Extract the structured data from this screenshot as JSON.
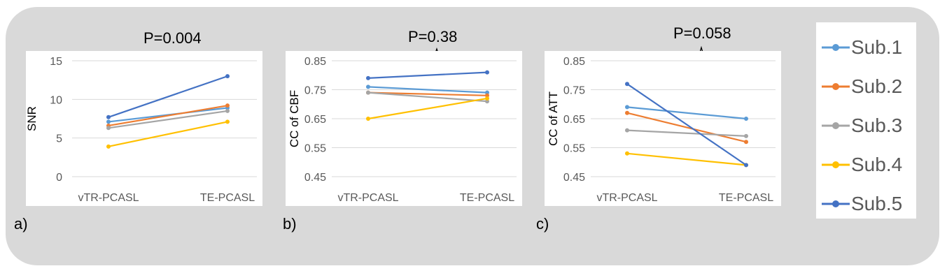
{
  "chart_data": [
    {
      "type": "line",
      "panel_label": "a)",
      "p_value": "P=0.004",
      "categories": [
        "vTR-PCASL",
        "TE-PCASL"
      ],
      "ylabel": "SNR",
      "ylim": [
        0,
        15
      ],
      "yticks": [
        0,
        5,
        10,
        15
      ],
      "ytick_labels": [
        "0",
        "5",
        "10",
        "15"
      ],
      "grid": true,
      "series": [
        {
          "name": "Sub.1",
          "values": [
            7.1,
            8.9
          ]
        },
        {
          "name": "Sub.2",
          "values": [
            6.6,
            9.2
          ]
        },
        {
          "name": "Sub.3",
          "values": [
            6.3,
            8.5
          ]
        },
        {
          "name": "Sub.4",
          "values": [
            3.9,
            7.1
          ]
        },
        {
          "name": "Sub.5",
          "values": [
            7.7,
            13.0
          ]
        }
      ]
    },
    {
      "type": "line",
      "panel_label": "b)",
      "p_value": "P=0.38",
      "categories": [
        "vTR-PCASL",
        "TE-PCASL"
      ],
      "ylabel": "CC of CBF",
      "ylim": [
        0.45,
        0.85
      ],
      "yticks": [
        0.45,
        0.55,
        0.65,
        0.75,
        0.85
      ],
      "ytick_labels": [
        "0.45",
        "0.55",
        "0.65",
        "0.75",
        "0.85"
      ],
      "grid": true,
      "series": [
        {
          "name": "Sub.1",
          "values": [
            0.76,
            0.74
          ]
        },
        {
          "name": "Sub.2",
          "values": [
            0.74,
            0.73
          ]
        },
        {
          "name": "Sub.3",
          "values": [
            0.74,
            0.71
          ]
        },
        {
          "name": "Sub.4",
          "values": [
            0.65,
            0.72
          ]
        },
        {
          "name": "Sub.5",
          "values": [
            0.79,
            0.81
          ]
        }
      ]
    },
    {
      "type": "line",
      "panel_label": "c)",
      "p_value": "P=0.058",
      "categories": [
        "vTR-PCASL",
        "TE-PCASL"
      ],
      "ylabel": "CC of ATT",
      "ylim": [
        0.45,
        0.85
      ],
      "yticks": [
        0.45,
        0.55,
        0.65,
        0.75,
        0.85
      ],
      "ytick_labels": [
        "0.45",
        "0.55",
        "0.65",
        "0.75",
        "0.85"
      ],
      "grid": true,
      "series": [
        {
          "name": "Sub.1",
          "values": [
            0.69,
            0.65
          ]
        },
        {
          "name": "Sub.2",
          "values": [
            0.67,
            0.57
          ]
        },
        {
          "name": "Sub.3",
          "values": [
            0.61,
            0.59
          ]
        },
        {
          "name": "Sub.4",
          "values": [
            0.53,
            0.49
          ]
        },
        {
          "name": "Sub.5",
          "values": [
            0.77,
            0.49
          ]
        }
      ]
    }
  ],
  "legend": {
    "entries": [
      {
        "name": "Sub.1",
        "color": "#5b9bd5"
      },
      {
        "name": "Sub.2",
        "color": "#ed7d31"
      },
      {
        "name": "Sub.3",
        "color": "#a5a5a5"
      },
      {
        "name": "Sub.4",
        "color": "#ffc000"
      },
      {
        "name": "Sub.5",
        "color": "#4472c4"
      }
    ]
  }
}
